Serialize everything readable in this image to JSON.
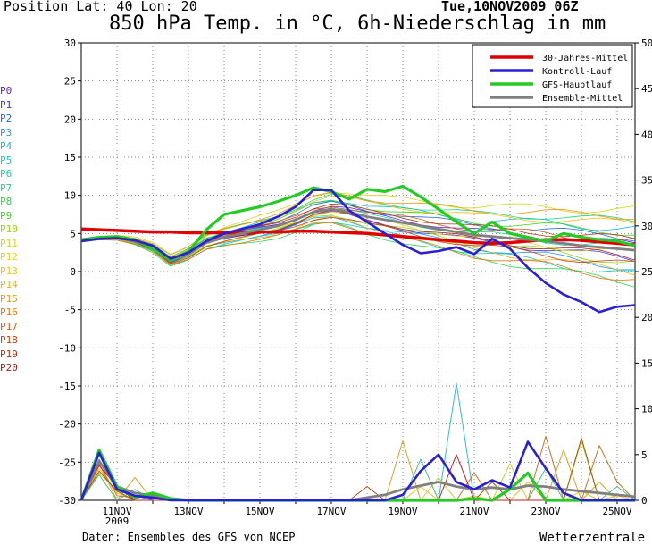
{
  "header": {
    "position": "Position   Lat: 40 Lon: 20",
    "timestamp": "Tue,10NOV2009 06Z",
    "title": "850 hPa Temp. in °C, 6h-Niederschlag in mm"
  },
  "footer": {
    "source": "Daten: Ensembles des GFS von NCEP",
    "brand": "Wetterzentrale"
  },
  "members": [
    {
      "label": "P0",
      "color": "#5a1fd6"
    },
    {
      "label": "P1",
      "color": "#3b35e0"
    },
    {
      "label": "P2",
      "color": "#1f6fe0"
    },
    {
      "label": "P3",
      "color": "#1e9fe6"
    },
    {
      "label": "P4",
      "color": "#12b9d9"
    },
    {
      "label": "P5",
      "color": "#11cccc"
    },
    {
      "label": "P6",
      "color": "#12d3a6"
    },
    {
      "label": "P7",
      "color": "#19d67a"
    },
    {
      "label": "P8",
      "color": "#2ad64a"
    },
    {
      "label": "P9",
      "color": "#3ed620"
    },
    {
      "label": "P10",
      "color": "#8fd81a"
    },
    {
      "label": "P11",
      "color": "#d6d61a"
    },
    {
      "label": "P12",
      "color": "#e8d21a"
    },
    {
      "label": "P13",
      "color": "#efc21a"
    },
    {
      "label": "P14",
      "color": "#efb01a"
    },
    {
      "label": "P15",
      "color": "#ed9718"
    },
    {
      "label": "P16",
      "color": "#e07a17"
    },
    {
      "label": "P17",
      "color": "#d05e16"
    },
    {
      "label": "P18",
      "color": "#c14415"
    },
    {
      "label": "P19",
      "color": "#b03214"
    },
    {
      "label": "P20",
      "color": "#9e2014"
    }
  ],
  "chart_data": {
    "type": "line",
    "title": "850 hPa Temp. in °C, 6h-Niederschlag in mm",
    "x_labels": [
      "11NOV\n2009",
      "13NOV",
      "15NOV",
      "17NOV",
      "19NOV",
      "21NOV",
      "23NOV",
      "25NOV"
    ],
    "x_label_days": [
      1,
      3,
      5,
      7,
      9,
      11,
      13,
      15
    ],
    "x_range_days": [
      0,
      15.5
    ],
    "y_left": {
      "ticks": [
        30,
        25,
        20,
        15,
        10,
        5,
        0,
        -5,
        -10,
        -15,
        -20,
        -25,
        -30
      ],
      "range": [
        -30,
        30
      ],
      "unit": "°C"
    },
    "y_right": {
      "ticks": [
        50,
        45,
        40,
        35,
        30,
        25,
        20,
        15,
        10,
        5,
        0
      ],
      "range": [
        0,
        50
      ],
      "unit": "mm"
    },
    "grid": true,
    "legend_position": "top-right",
    "legend": [
      {
        "name": "30-Jahres-Mittel",
        "color": "#e00000"
      },
      {
        "name": "Kontroll-Lauf",
        "color": "#2a1fd6"
      },
      {
        "name": "GFS-Hauptlauf",
        "color": "#22cc22"
      },
      {
        "name": "Ensemble-Mittel",
        "color": "#808080"
      }
    ],
    "temperature": {
      "x": [
        0,
        0.5,
        1,
        1.5,
        2,
        2.5,
        3,
        3.5,
        4,
        4.5,
        5,
        5.5,
        6,
        6.5,
        7,
        7.5,
        8,
        8.5,
        9,
        9.5,
        10,
        10.5,
        11,
        11.5,
        12,
        12.5,
        13,
        13.5,
        14,
        14.5,
        15,
        15.5
      ],
      "series": [
        {
          "name": "30-Jahres-Mittel",
          "axis": "left",
          "values": [
            5.6,
            5.5,
            5.4,
            5.3,
            5.2,
            5.2,
            5.1,
            5.1,
            5.1,
            5.1,
            5.2,
            5.2,
            5.3,
            5.3,
            5.2,
            5.1,
            5.0,
            4.8,
            4.6,
            4.4,
            4.2,
            4.0,
            3.8,
            3.7,
            3.8,
            4.0,
            4.2,
            4.2,
            4.1,
            3.9,
            3.7,
            3.5
          ]
        },
        {
          "name": "Kontroll-Lauf",
          "axis": "left",
          "values": [
            4.0,
            4.3,
            4.4,
            4.1,
            3.4,
            1.7,
            2.5,
            4.0,
            5.0,
            5.6,
            6.2,
            7.2,
            8.5,
            10.7,
            10.7,
            8.0,
            6.5,
            5.0,
            3.5,
            2.4,
            2.7,
            3.2,
            2.3,
            4.3,
            3.0,
            0.5,
            -1.5,
            -3.0,
            -4.0,
            -5.3,
            -4.6,
            -4.4
          ]
        },
        {
          "name": "GFS-Hauptlauf",
          "axis": "left",
          "values": [
            4.2,
            4.5,
            4.6,
            4.2,
            3.0,
            1.5,
            2.6,
            5.5,
            7.5,
            8.0,
            8.5,
            9.2,
            10.0,
            11.0,
            10.5,
            9.5,
            10.8,
            10.5,
            11.2,
            9.8,
            8.2,
            6.5,
            5.0,
            6.5,
            5.0,
            4.5,
            4.0,
            5.0,
            4.5,
            4.2,
            4.0,
            3.4
          ]
        },
        {
          "name": "Ensemble-Mittel",
          "axis": "left",
          "values": [
            4.0,
            4.3,
            4.4,
            4.0,
            3.1,
            1.4,
            2.3,
            3.8,
            4.5,
            5.0,
            5.5,
            6.0,
            6.8,
            7.8,
            8.2,
            7.8,
            7.2,
            6.8,
            6.4,
            6.0,
            5.6,
            5.2,
            4.8,
            4.6,
            4.4,
            4.2,
            4.0,
            3.7,
            3.4,
            3.2,
            3.0,
            2.8
          ]
        }
      ]
    },
    "precipitation": {
      "x": [
        0,
        0.5,
        1,
        1.5,
        2,
        2.5,
        3,
        3.5,
        4,
        4.5,
        5,
        5.5,
        6,
        6.5,
        7,
        7.5,
        8,
        8.5,
        9,
        9.5,
        10,
        10.5,
        11,
        11.5,
        12,
        12.5,
        13,
        13.5,
        14,
        14.5,
        15,
        15.5
      ],
      "series": [
        {
          "name": "Kontroll-Lauf",
          "axis": "right",
          "values": [
            0,
            5.2,
            1.2,
            0.5,
            0.3,
            0,
            0,
            0,
            0,
            0,
            0,
            0,
            0,
            0,
            0,
            0,
            0,
            0,
            0.6,
            3.2,
            5.0,
            2.0,
            1.2,
            2.2,
            1.4,
            6.4,
            3.5,
            0.8,
            0,
            0,
            0,
            0
          ]
        },
        {
          "name": "GFS-Hauptlauf",
          "axis": "right",
          "values": [
            0,
            5.5,
            1.5,
            0.3,
            0.8,
            0.2,
            0,
            0,
            0,
            0,
            0,
            0,
            0,
            0,
            0,
            0,
            0,
            0,
            0,
            0,
            0,
            0,
            0.2,
            0,
            1.2,
            3.0,
            0,
            0,
            0,
            0,
            0,
            0
          ]
        },
        {
          "name": "Ensemble-Mittel",
          "axis": "right",
          "values": [
            0,
            4.3,
            1.5,
            0.8,
            0.5,
            0.2,
            0,
            0,
            0,
            0,
            0,
            0,
            0,
            0,
            0,
            0,
            0.3,
            0.6,
            1.2,
            1.6,
            2.0,
            1.5,
            1.2,
            1.4,
            1.2,
            1.6,
            1.5,
            1.2,
            1.0,
            0.8,
            0.6,
            0.4
          ]
        }
      ],
      "members": [
        [
          0,
          3.5,
          0.8,
          0,
          0,
          0,
          0,
          0,
          0,
          0,
          0,
          0,
          0,
          0,
          0,
          0,
          0,
          0,
          0,
          1.5,
          0,
          0,
          0.5,
          0,
          0,
          2.0,
          0,
          0,
          1.0,
          0,
          0.5,
          0
        ],
        [
          0,
          4.5,
          1.0,
          0.5,
          0,
          0,
          0,
          0,
          0,
          0,
          0,
          0,
          0,
          0,
          0,
          0,
          0,
          0,
          0,
          0,
          0,
          12.8,
          0,
          0,
          0,
          0,
          0,
          0,
          0,
          0,
          0,
          0
        ],
        [
          0,
          4.0,
          0,
          2.5,
          0,
          0,
          0,
          0,
          0,
          0,
          0,
          0,
          0,
          0,
          0,
          0,
          0,
          0,
          6.5,
          0,
          0,
          0,
          0,
          0,
          0,
          0,
          0,
          5.5,
          0,
          2.0,
          0,
          0
        ],
        [
          0,
          3.0,
          1.0,
          0,
          0,
          0,
          0,
          0,
          0,
          0,
          0,
          0,
          0,
          0,
          0,
          0,
          0,
          0,
          0,
          0,
          2.5,
          0,
          0,
          0,
          4.0,
          0,
          0,
          0,
          6.5,
          0,
          0,
          0
        ],
        [
          0,
          4.0,
          0.5,
          0.3,
          0.6,
          0,
          0,
          0,
          0,
          0,
          0,
          0,
          0,
          0,
          0,
          0,
          0,
          0,
          0,
          0,
          0,
          0,
          3.0,
          0,
          0,
          0,
          7.0,
          0,
          0,
          6.0,
          2.0,
          0
        ],
        [
          0,
          3.2,
          1.0,
          0,
          0,
          0,
          0,
          0,
          0,
          0,
          0,
          0,
          0,
          0,
          0,
          0,
          1.5,
          0,
          0,
          0,
          0,
          0,
          0,
          2.0,
          0,
          0,
          0,
          0,
          6.8,
          0,
          0,
          0
        ],
        [
          0,
          2.8,
          0,
          1.2,
          0,
          0,
          0,
          0,
          0,
          0,
          0,
          0,
          0,
          0,
          0,
          0,
          0,
          0,
          0,
          4.5,
          0,
          0,
          0,
          0,
          0,
          0,
          3.5,
          0,
          0,
          0,
          1.5,
          0
        ],
        [
          0,
          3.8,
          1.5,
          0,
          0,
          0,
          0,
          0,
          0,
          0,
          0,
          0,
          0,
          0,
          0,
          0,
          0,
          0,
          0,
          0,
          0,
          5.0,
          0,
          0,
          0,
          0,
          0,
          0,
          0,
          0,
          0,
          0
        ]
      ]
    }
  }
}
